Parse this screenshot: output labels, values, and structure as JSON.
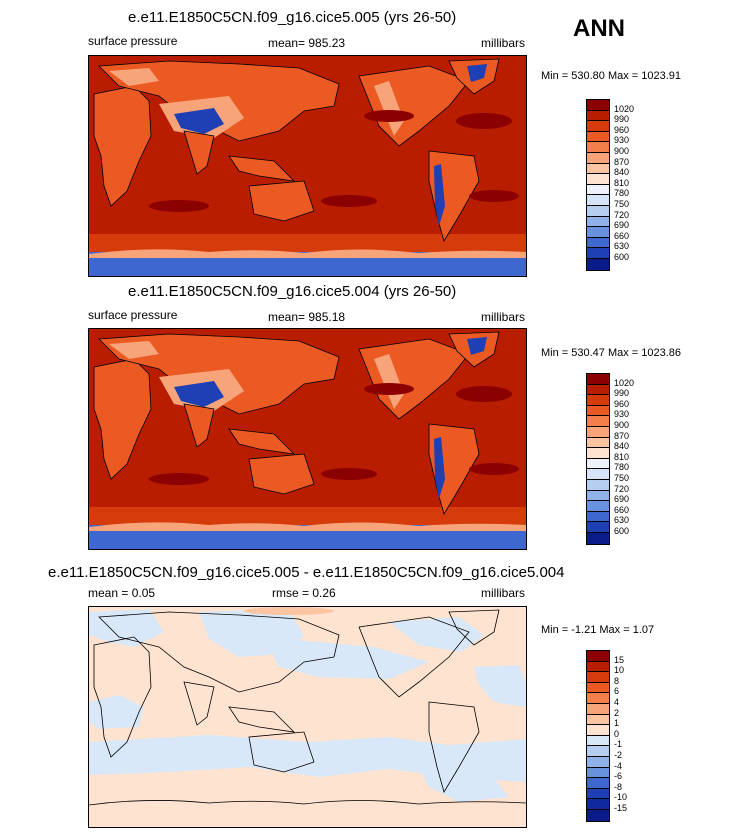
{
  "season_label": "ANN",
  "panels": [
    {
      "title": "e.e11.E1850C5CN.f09_g16.cice5.005 (yrs 26-50)",
      "left_label": "surface pressure",
      "center_label": "mean= 985.23",
      "units": "millibars",
      "minmax": "Min = 530.80 Max = 1023.91"
    },
    {
      "title": "e.e11.E1850C5CN.f09_g16.cice5.004 (yrs 26-50)",
      "left_label": "surface pressure",
      "center_label": "mean= 985.18",
      "units": "millibars",
      "minmax": "Min = 530.47 Max = 1023.86"
    },
    {
      "title": "e.e11.E1850C5CN.f09_g16.cice5.005 - e.e11.E1850C5CN.f09_g16.cice5.004",
      "left_label": "mean =   0.05",
      "center_label": "rmse =   0.26",
      "units": "millibars",
      "minmax": "Min =  -1.21 Max =   1.07"
    }
  ],
  "colorbar_abs": {
    "labels": [
      "1020",
      "990",
      "960",
      "930",
      "900",
      "870",
      "840",
      "810",
      "780",
      "750",
      "720",
      "690",
      "660",
      "630",
      "600"
    ],
    "colors": [
      "#8b0000",
      "#b81d00",
      "#d63b0c",
      "#ec5a24",
      "#f47f4a",
      "#f8a47a",
      "#fbc5a2",
      "#fde3d0",
      "#eef3fb",
      "#d5e4f7",
      "#b6cff0",
      "#8fb3e8",
      "#6891de",
      "#3f67d0",
      "#1f3fb5",
      "#0a1b8a"
    ]
  },
  "colorbar_diff": {
    "labels": [
      "15",
      "10",
      "8",
      "6",
      "4",
      "2",
      "1",
      "0",
      "-1",
      "-2",
      "-4",
      "-6",
      "-8",
      "-10",
      "-15"
    ],
    "colors": [
      "#8b0000",
      "#b81d00",
      "#d63b0c",
      "#ec5a24",
      "#f47f4a",
      "#f8a47a",
      "#fbc5a2",
      "#fde3d0",
      "#d9e8f8",
      "#b6cff0",
      "#8fb3e8",
      "#6891de",
      "#3f67d0",
      "#1f3fb5",
      "#0f2a9e",
      "#0a1b8a"
    ]
  },
  "map_colors": {
    "ocean": "#b81d00",
    "land_high": "#d63b0c",
    "land_mid": "#ec5a24",
    "mountain": "#f8a47a",
    "plateau": "#1f3fb5",
    "southern_band": "#d63b0c",
    "antarctica": "#3f67d0",
    "highs": "#8b0000",
    "diff_base": "#fde3d0",
    "diff_neg": "#d9e8f8",
    "diff_pos": "#fbc5a2"
  }
}
